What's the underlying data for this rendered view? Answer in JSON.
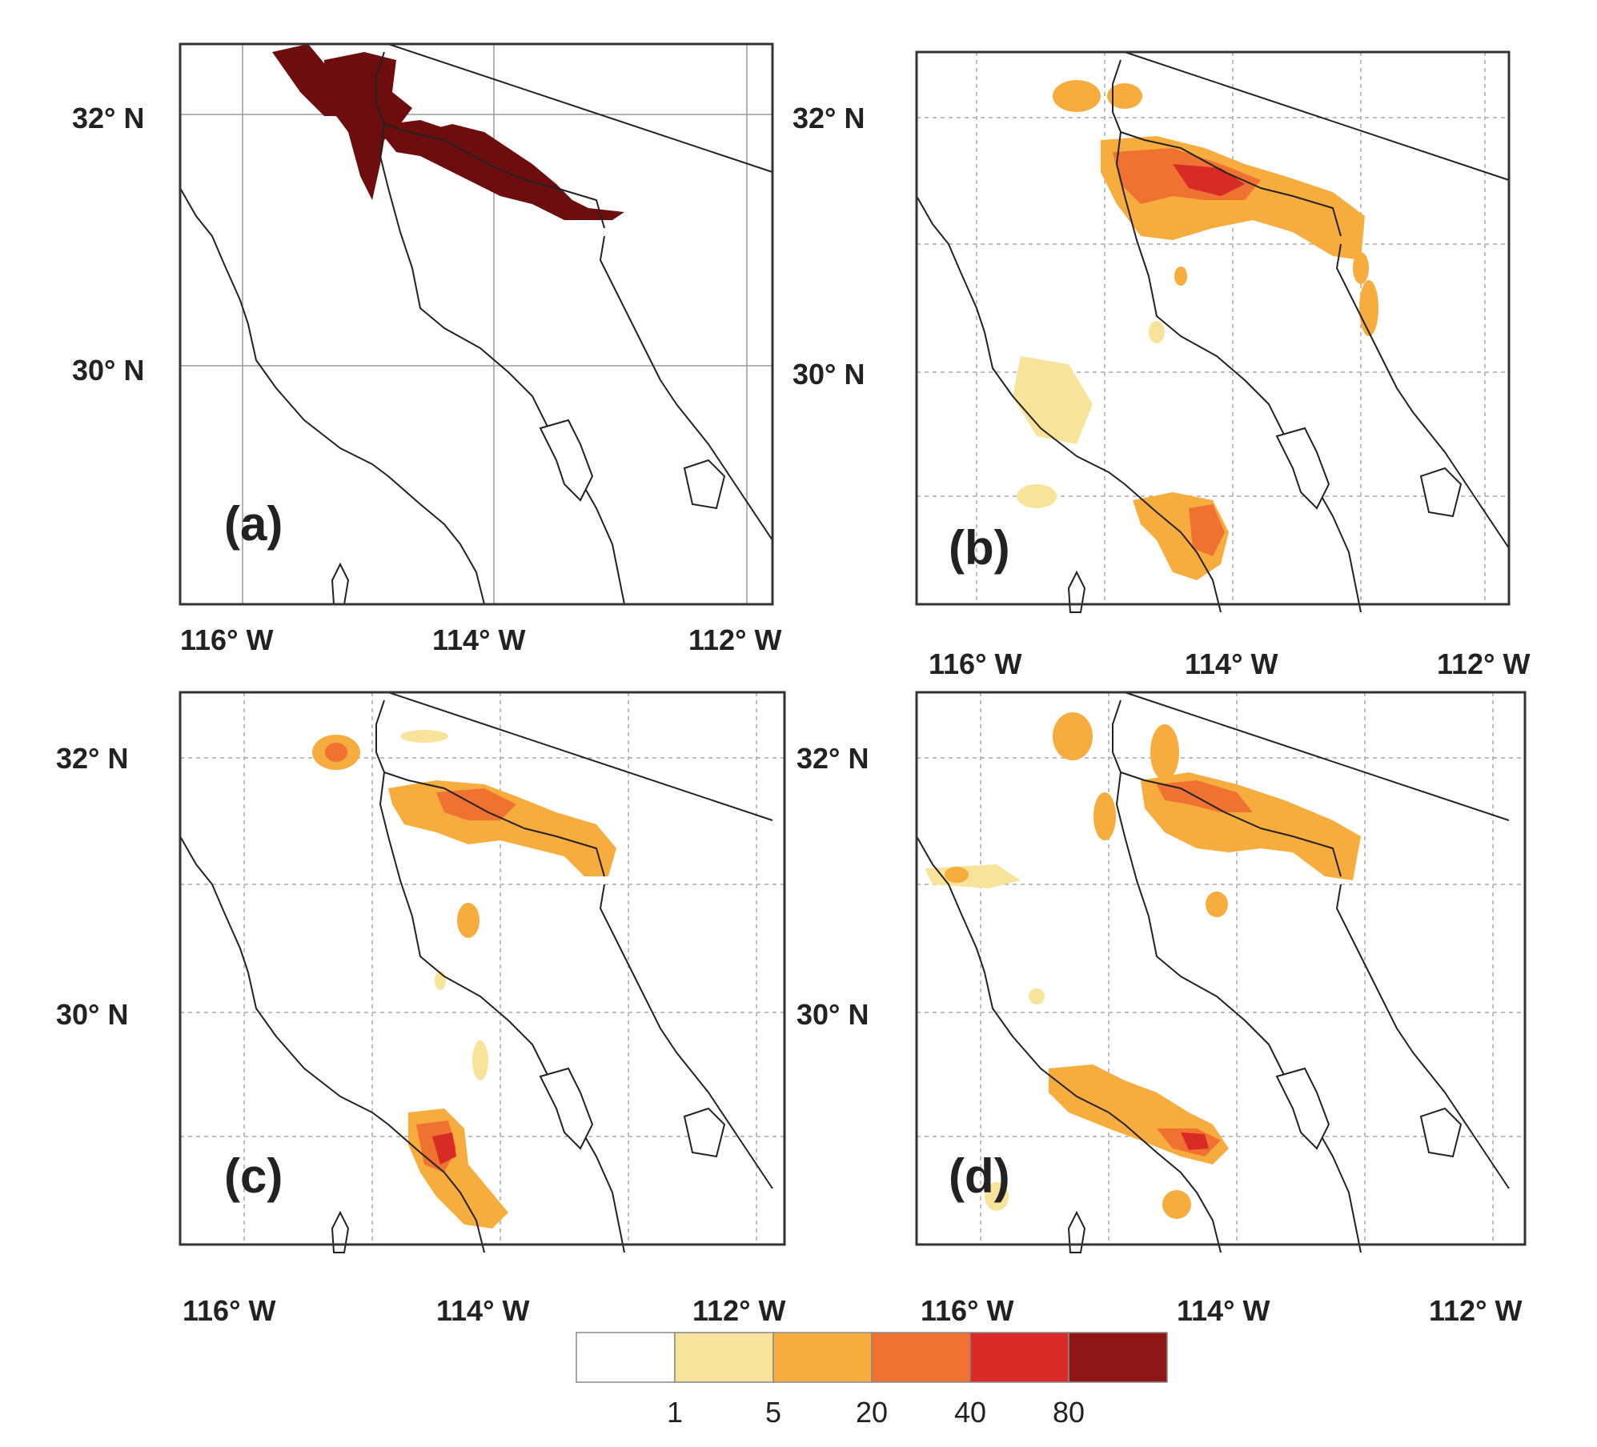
{
  "panels": [
    {
      "id": "a",
      "label": "(a)",
      "lat_labels": [
        "32° N",
        "30° N"
      ],
      "lon_labels": [
        "116° W",
        "114° W",
        "112° W"
      ],
      "grid": "solid"
    },
    {
      "id": "b",
      "label": "(b)",
      "lat_labels": [
        "32° N",
        "30° N"
      ],
      "lon_labels": [
        "116° W",
        "114° W",
        "112° W"
      ],
      "grid": "dashed"
    },
    {
      "id": "c",
      "label": "(c)",
      "lat_labels": [
        "32° N",
        "30° N"
      ],
      "lon_labels": [
        "116° W",
        "114° W",
        "112° W"
      ],
      "grid": "dashed"
    },
    {
      "id": "d",
      "label": "(d)",
      "lat_labels": [
        "32° N",
        "30° N"
      ],
      "lon_labels": [
        "116° W",
        "114° W",
        "112° W"
      ],
      "grid": "dashed"
    }
  ],
  "colorbar": {
    "colors": [
      "#ffffff",
      "#f8e39a",
      "#f7ac3e",
      "#ef7230",
      "#d92b26",
      "#8e1616"
    ],
    "tick_labels": [
      "1",
      "5",
      "20",
      "40",
      "80"
    ]
  },
  "colors": {
    "panel_a_region": "#6e0d0d",
    "light": "#f8e39a",
    "orange": "#f7ac3e",
    "dark_orange": "#ef7230",
    "red": "#d92b26"
  }
}
